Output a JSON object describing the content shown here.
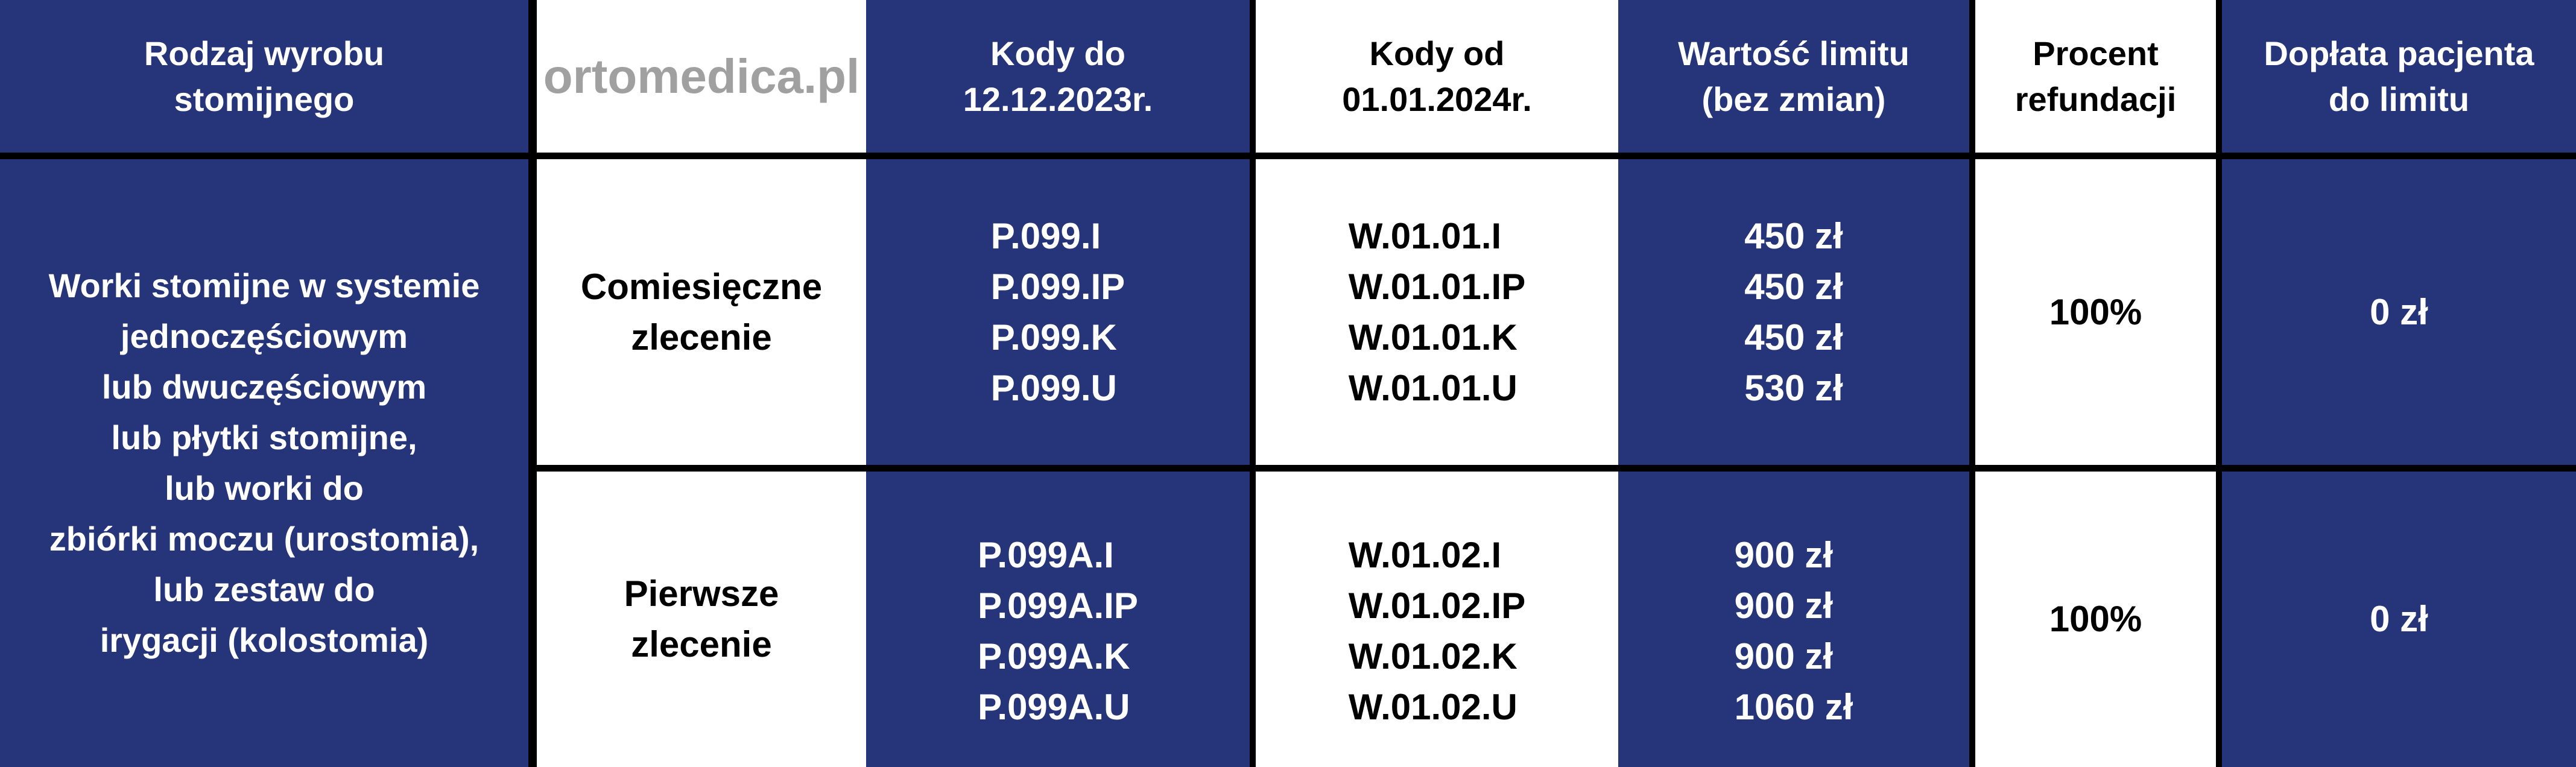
{
  "header": {
    "product_type": [
      "Rodzaj wyrobu",
      "stomijnego"
    ],
    "blank": "",
    "codes_old": [
      "Kody do",
      "12.12.2023r."
    ],
    "codes_new": [
      "Kody od",
      "01.01.2024r."
    ],
    "limit_value": [
      "Wartość limitu",
      "(bez zmian)"
    ],
    "refund_percent": [
      "Procent",
      "refundacji"
    ],
    "patient_copay": [
      "Dopłata pacjenta",
      "do limitu"
    ]
  },
  "product_description": [
    "Worki stomijne w systemie",
    "jednoczęściowym",
    "lub dwuczęściowym",
    "lub płytki stomijne,",
    "lub worki do",
    "zbiórki moczu (urostomia),",
    "lub zestaw do",
    "irygacji (kolostomia)"
  ],
  "rows": [
    {
      "order_type": [
        "Comiesięczne",
        "zlecenie"
      ],
      "codes_old": [
        "P.099.I",
        "P.099.IP",
        "P.099.K",
        "P.099.U"
      ],
      "codes_new": [
        "W.01.01.I",
        "W.01.01.IP",
        "W.01.01.K",
        "W.01.01.U"
      ],
      "limits": [
        "450 zł",
        "450 zł",
        "450 zł",
        "530 zł"
      ],
      "refund_percent": "100%",
      "patient_copay": "0 zł"
    },
    {
      "order_type": [
        "Pierwsze",
        "zlecenie"
      ],
      "codes_old": [
        "P.099A.I",
        "P.099A.IP",
        "P.099A.K",
        "P.099A.U"
      ],
      "codes_new": [
        "W.01.02.I",
        "W.01.02.IP",
        "W.01.02.K",
        "W.01.02.U"
      ],
      "limits": [
        "900 zł",
        "900 zł",
        "900 zł",
        "1060 zł"
      ],
      "refund_percent": "100%",
      "patient_copay": "0 zł"
    }
  ],
  "watermark": "ortomedica.pl",
  "colors": {
    "navy": "#26347a",
    "white": "#ffffff",
    "border": "#000000"
  }
}
